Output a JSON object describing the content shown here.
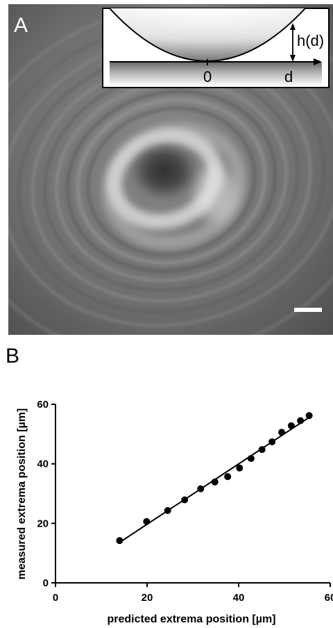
{
  "panel_a": {
    "label": "A",
    "inset": {
      "height_label": "h(d)",
      "origin_label": "0",
      "distance_label": "d"
    }
  },
  "panel_b": {
    "label": "B"
  },
  "chart_data": {
    "type": "scatter",
    "title": "",
    "xlabel": "predicted extrema position [µm]",
    "ylabel": "measured extrema position [µm]",
    "xlim": [
      0,
      60
    ],
    "ylim": [
      0,
      60
    ],
    "xticks": [
      "0",
      "20",
      "40",
      "60"
    ],
    "yticks": [
      "0",
      "20",
      "40",
      "60"
    ],
    "grid": false,
    "series": [
      {
        "x": [
          14.0,
          19.9,
          24.5,
          28.2,
          31.7,
          34.8,
          37.6,
          40.2,
          42.7,
          45.1,
          47.3,
          49.4,
          51.5,
          53.5,
          55.4
        ],
        "y": [
          14.2,
          20.6,
          24.3,
          27.9,
          31.6,
          33.9,
          35.7,
          38.6,
          41.8,
          44.8,
          47.4,
          50.6,
          52.8,
          54.5,
          56.2
        ]
      }
    ],
    "fit_line": {
      "x": [
        14.0,
        55.4
      ],
      "y": [
        13.6,
        55.6
      ]
    },
    "colors": {
      "markers": "#000000",
      "fit": "#000000"
    }
  }
}
